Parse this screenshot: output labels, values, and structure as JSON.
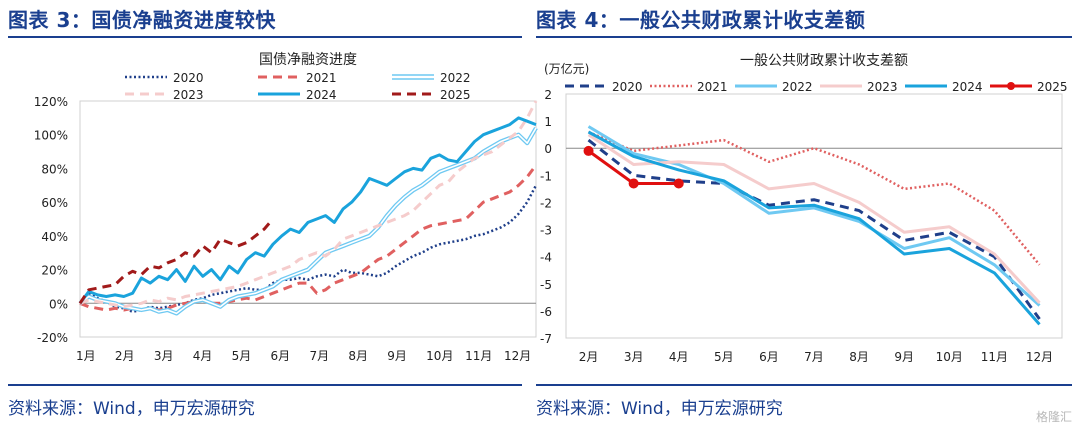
{
  "left": {
    "panel_title": "图表 3：国债净融资进度较快",
    "source": "资料来源：Wind，申万宏源研究"
  },
  "right": {
    "panel_title": "图表 4：一般公共财政累计收支差额",
    "source": "资料来源：Wind，申万宏源研究"
  },
  "watermark": "格隆汇",
  "chart_data": [
    {
      "type": "line",
      "title": "国债净融资进度",
      "x_categories": [
        "1月",
        "2月",
        "3月",
        "4月",
        "5月",
        "6月",
        "7月",
        "8月",
        "9月",
        "10月",
        "11月",
        "12月"
      ],
      "xlim": [
        0,
        52
      ],
      "ylim": [
        -0.2,
        1.2
      ],
      "yticks": [
        -0.2,
        0,
        0.2,
        0.4,
        0.6,
        0.8,
        1.0,
        1.2
      ],
      "ytick_labels": [
        "-20%",
        "0%",
        "20%",
        "40%",
        "60%",
        "80%",
        "100%",
        "120%"
      ],
      "legend_position": "top",
      "series": [
        {
          "name": "2020",
          "color": "#1f3f8a",
          "style": "dotted",
          "x": [
            0,
            1,
            2,
            3,
            4,
            5,
            6,
            7,
            8,
            9,
            10,
            11,
            12,
            13,
            14,
            15,
            16,
            17,
            18,
            19,
            20,
            21,
            22,
            23,
            24,
            25,
            26,
            27,
            28,
            29,
            30,
            31,
            32,
            33,
            34,
            35,
            36,
            37,
            38,
            39,
            40,
            41,
            42,
            43,
            44,
            45,
            46,
            47,
            48,
            49,
            50,
            51,
            52
          ],
          "y": [
            0,
            0.06,
            0.03,
            0.01,
            -0.02,
            -0.03,
            -0.05,
            -0.04,
            -0.02,
            -0.03,
            -0.02,
            -0.01,
            0,
            0.02,
            0.03,
            0.05,
            0.06,
            0.07,
            0.08,
            0.09,
            0.08,
            0.08,
            0.12,
            0.14,
            0.14,
            0.15,
            0.14,
            0.16,
            0.17,
            0.16,
            0.2,
            0.18,
            0.18,
            0.17,
            0.16,
            0.18,
            0.22,
            0.25,
            0.28,
            0.3,
            0.33,
            0.35,
            0.36,
            0.37,
            0.38,
            0.4,
            0.41,
            0.43,
            0.45,
            0.48,
            0.53,
            0.6,
            0.7
          ]
        },
        {
          "name": "2021",
          "color": "#e06060",
          "style": "dashed",
          "x": [
            0,
            1,
            2,
            3,
            4,
            5,
            6,
            7,
            8,
            9,
            10,
            11,
            12,
            13,
            14,
            15,
            16,
            17,
            18,
            19,
            20,
            21,
            22,
            23,
            24,
            25,
            26,
            27,
            28,
            29,
            30,
            31,
            32,
            33,
            34,
            35,
            36,
            37,
            38,
            39,
            40,
            41,
            42,
            43,
            44,
            45,
            46,
            47,
            48,
            49,
            50,
            51,
            52
          ],
          "y": [
            0,
            -0.02,
            -0.03,
            -0.04,
            -0.03,
            -0.04,
            -0.03,
            -0.04,
            -0.03,
            -0.04,
            -0.03,
            -0.01,
            0.0,
            0.01,
            0.02,
            0.0,
            0.0,
            0.01,
            0.02,
            0.03,
            0.02,
            0.04,
            0.06,
            0.08,
            0.1,
            0.12,
            0.12,
            0.06,
            0.08,
            0.12,
            0.14,
            0.16,
            0.18,
            0.22,
            0.26,
            0.28,
            0.32,
            0.36,
            0.4,
            0.44,
            0.46,
            0.47,
            0.48,
            0.49,
            0.5,
            0.55,
            0.6,
            0.62,
            0.64,
            0.66,
            0.7,
            0.75,
            0.82
          ]
        },
        {
          "name": "2022",
          "color": "#6fc9f2",
          "style": "double",
          "x": [
            0,
            1,
            2,
            3,
            4,
            5,
            6,
            7,
            8,
            9,
            10,
            11,
            12,
            13,
            14,
            15,
            16,
            17,
            18,
            19,
            20,
            21,
            22,
            23,
            24,
            25,
            26,
            27,
            28,
            29,
            30,
            31,
            32,
            33,
            34,
            35,
            36,
            37,
            38,
            39,
            40,
            41,
            42,
            43,
            44,
            45,
            46,
            47,
            48,
            49,
            50,
            51,
            52
          ],
          "y": [
            0,
            0.04,
            0.02,
            0.01,
            0.0,
            -0.02,
            -0.03,
            -0.04,
            -0.03,
            -0.05,
            -0.04,
            -0.06,
            -0.02,
            0.01,
            0.02,
            0.0,
            -0.02,
            0.02,
            0.04,
            0.05,
            0.06,
            0.08,
            0.1,
            0.14,
            0.16,
            0.18,
            0.2,
            0.25,
            0.3,
            0.32,
            0.34,
            0.36,
            0.38,
            0.4,
            0.45,
            0.52,
            0.58,
            0.63,
            0.67,
            0.7,
            0.74,
            0.78,
            0.8,
            0.82,
            0.84,
            0.86,
            0.9,
            0.93,
            0.96,
            0.98,
            1.0,
            0.95,
            1.04
          ]
        },
        {
          "name": "2023",
          "color": "#f5cccc",
          "style": "dashed",
          "x": [
            0,
            1,
            2,
            3,
            4,
            5,
            6,
            7,
            8,
            9,
            10,
            11,
            12,
            13,
            14,
            15,
            16,
            17,
            18,
            19,
            20,
            21,
            22,
            23,
            24,
            25,
            26,
            27,
            28,
            29,
            30,
            31,
            32,
            33,
            34,
            35,
            36,
            37,
            38,
            39,
            40,
            41,
            42,
            43,
            44,
            45,
            46,
            47,
            48,
            49,
            50,
            51,
            52
          ],
          "y": [
            0,
            0.02,
            0.01,
            0.0,
            -0.01,
            -0.02,
            -0.01,
            0.0,
            0.02,
            0.01,
            0.03,
            0.02,
            0.04,
            0.05,
            0.06,
            0.07,
            0.08,
            0.09,
            0.1,
            0.12,
            0.14,
            0.16,
            0.18,
            0.2,
            0.22,
            0.26,
            0.28,
            0.3,
            0.28,
            0.32,
            0.38,
            0.4,
            0.42,
            0.44,
            0.46,
            0.48,
            0.5,
            0.52,
            0.55,
            0.6,
            0.65,
            0.7,
            0.72,
            0.78,
            0.82,
            0.86,
            0.88,
            0.9,
            0.94,
            0.98,
            1.02,
            1.1,
            1.2
          ]
        },
        {
          "name": "2024",
          "color": "#1aa3dc",
          "style": "solid",
          "x": [
            0,
            1,
            2,
            3,
            4,
            5,
            6,
            7,
            8,
            9,
            10,
            11,
            12,
            13,
            14,
            15,
            16,
            17,
            18,
            19,
            20,
            21,
            22,
            23,
            24,
            25,
            26,
            27,
            28,
            29,
            30,
            31,
            32,
            33,
            34,
            35,
            36,
            37,
            38,
            39,
            40,
            41,
            42,
            43,
            44,
            45,
            46,
            47,
            48,
            49,
            50,
            51,
            52
          ],
          "y": [
            0,
            0.07,
            0.05,
            0.04,
            0.05,
            0.04,
            0.06,
            0.15,
            0.12,
            0.16,
            0.14,
            0.2,
            0.13,
            0.22,
            0.16,
            0.2,
            0.14,
            0.22,
            0.18,
            0.26,
            0.3,
            0.28,
            0.35,
            0.4,
            0.44,
            0.42,
            0.48,
            0.5,
            0.52,
            0.48,
            0.56,
            0.6,
            0.66,
            0.74,
            0.72,
            0.7,
            0.74,
            0.78,
            0.8,
            0.79,
            0.86,
            0.88,
            0.85,
            0.84,
            0.9,
            0.96,
            1.0,
            1.02,
            1.04,
            1.06,
            1.1,
            1.08,
            1.06
          ]
        },
        {
          "name": "2025",
          "color": "#a11a1a",
          "style": "dashed",
          "x": [
            0,
            1,
            2,
            3,
            4,
            5,
            6,
            7,
            8,
            9,
            10,
            11,
            12,
            13,
            14,
            15,
            16,
            17,
            18,
            19,
            20,
            21,
            22
          ],
          "y": [
            0,
            0.08,
            0.09,
            0.1,
            0.11,
            0.16,
            0.19,
            0.17,
            0.22,
            0.21,
            0.24,
            0.26,
            0.3,
            0.28,
            0.34,
            0.3,
            0.38,
            0.36,
            0.34,
            0.36,
            0.4,
            0.44,
            0.5
          ]
        }
      ]
    },
    {
      "type": "line",
      "title": "一般公共财政累计收支差额",
      "ylabel": "(万亿元)",
      "x_categories": [
        "2月",
        "3月",
        "4月",
        "5月",
        "6月",
        "7月",
        "8月",
        "9月",
        "10月",
        "11月",
        "12月"
      ],
      "ylim": [
        -7,
        2
      ],
      "yticks": [
        -7,
        -6,
        -5,
        -4,
        -3,
        -2,
        -1,
        0,
        1,
        2
      ],
      "legend_position": "top",
      "series": [
        {
          "name": "2020",
          "color": "#1f3f8a",
          "style": "dashed",
          "values": [
            0.3,
            -1.0,
            -1.2,
            -1.3,
            -2.1,
            -1.9,
            -2.3,
            -3.4,
            -3.1,
            -4.0,
            -6.3
          ]
        },
        {
          "name": "2021",
          "color": "#e06060",
          "style": "dotted",
          "values": [
            0.6,
            -0.1,
            0.1,
            0.3,
            -0.5,
            0.0,
            -0.6,
            -1.5,
            -1.3,
            -2.3,
            -4.3
          ]
        },
        {
          "name": "2022",
          "color": "#6fc9f2",
          "style": "solid",
          "values": [
            0.8,
            -0.2,
            -0.6,
            -1.3,
            -2.4,
            -2.2,
            -2.7,
            -3.7,
            -3.3,
            -4.3,
            -5.8
          ]
        },
        {
          "name": "2023",
          "color": "#f5cccc",
          "style": "solid",
          "values": [
            0.5,
            -0.6,
            -0.5,
            -0.6,
            -1.5,
            -1.3,
            -2.0,
            -3.1,
            -2.9,
            -3.9,
            -5.7
          ]
        },
        {
          "name": "2024",
          "color": "#1aa3dc",
          "style": "solid",
          "values": [
            0.6,
            -0.3,
            -0.8,
            -1.2,
            -2.2,
            -2.1,
            -2.6,
            -3.9,
            -3.7,
            -4.6,
            -6.5
          ]
        },
        {
          "name": "2025",
          "color": "#e01010",
          "style": "solid-marker",
          "values": [
            -0.1,
            -1.3,
            -1.3,
            null,
            null,
            null,
            null,
            null,
            null,
            null,
            null
          ]
        }
      ]
    }
  ]
}
